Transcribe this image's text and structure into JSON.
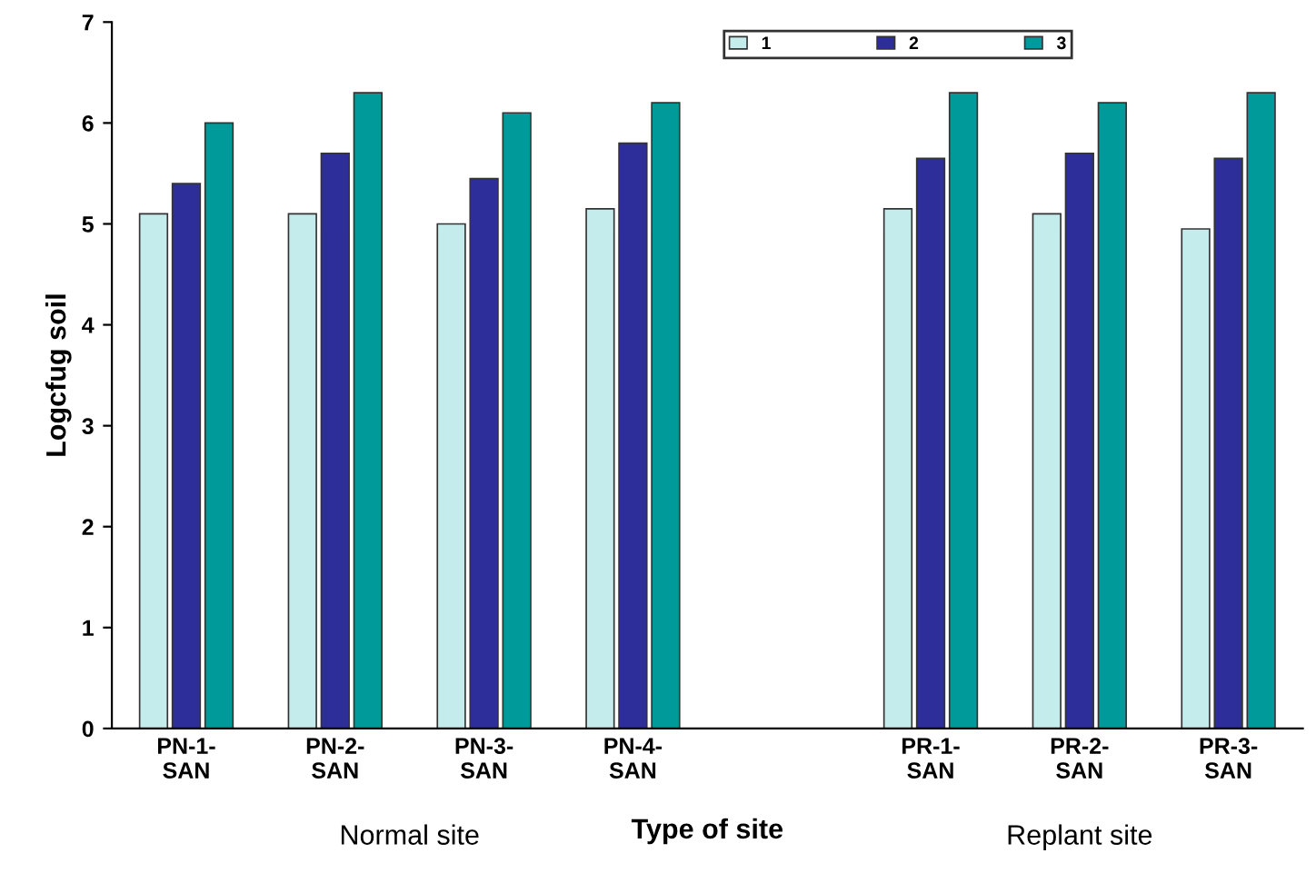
{
  "chart_data": {
    "type": "bar",
    "xlabel": "Type of site",
    "ylabel": "Logcfug soil",
    "categories": [
      "PN-1-\nSAN",
      "PN-2-\nSAN",
      "PN-3-\nSAN",
      "PN-4-\nSAN",
      null,
      "PR-1-\nSAN",
      "PR-2-\nSAN",
      "PR-3-\nSAN"
    ],
    "series": [
      {
        "name": "1",
        "color": "#c4ecec",
        "values": [
          5.1,
          5.1,
          5.0,
          5.15,
          null,
          5.15,
          5.1,
          4.95
        ]
      },
      {
        "name": "2",
        "color": "#2e2e9a",
        "values": [
          5.4,
          5.7,
          5.45,
          5.8,
          null,
          5.65,
          5.7,
          5.65
        ]
      },
      {
        "name": "3",
        "color": "#009a9a",
        "values": [
          6.0,
          6.3,
          6.1,
          6.2,
          null,
          6.3,
          6.2,
          6.3
        ]
      }
    ],
    "ylim": [
      0,
      7
    ],
    "yticks": [
      0,
      1,
      2,
      3,
      4,
      5,
      6,
      7
    ],
    "grid": false,
    "legend": "top",
    "annotations": [
      "Normal site",
      "Replant site"
    ]
  }
}
